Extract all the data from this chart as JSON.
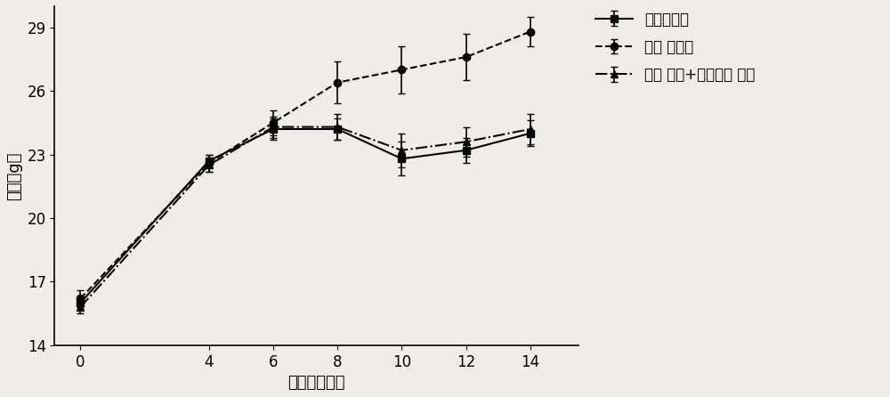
{
  "x": [
    0,
    4,
    6,
    8,
    10,
    12,
    14
  ],
  "normal_diet": {
    "y": [
      16.0,
      22.7,
      24.2,
      24.2,
      22.8,
      23.2,
      24.0
    ],
    "yerr": [
      0.3,
      0.3,
      0.5,
      0.5,
      0.8,
      0.6,
      0.6
    ],
    "label": "正常饮食组",
    "linestyle": "-",
    "marker": "s",
    "color": "#000000"
  },
  "high_fat_diet": {
    "y": [
      16.2,
      22.6,
      24.5,
      26.4,
      27.0,
      27.6,
      28.8
    ],
    "yerr": [
      0.4,
      0.4,
      0.6,
      1.0,
      1.1,
      1.1,
      0.7
    ],
    "label": "高脂 饮食组",
    "linestyle": "--",
    "marker": "o",
    "color": "#000000"
  },
  "high_fat_tea": {
    "y": [
      15.8,
      22.5,
      24.3,
      24.3,
      23.2,
      23.6,
      24.2
    ],
    "yerr": [
      0.3,
      0.3,
      0.5,
      0.6,
      0.8,
      0.7,
      0.7
    ],
    "label": "高脂 饮食+茶多酚组 合组",
    "linestyle": "-.",
    "marker": "^",
    "color": "#000000"
  },
  "xlabel": "时间（星期）",
  "ylabel": "体重（g）",
  "ylim": [
    14,
    30
  ],
  "yticks": [
    14,
    17,
    20,
    23,
    26,
    29
  ],
  "xticks": [
    0,
    4,
    6,
    8,
    10,
    12,
    14
  ],
  "background_color": "#f0ede8",
  "font_size": 13
}
